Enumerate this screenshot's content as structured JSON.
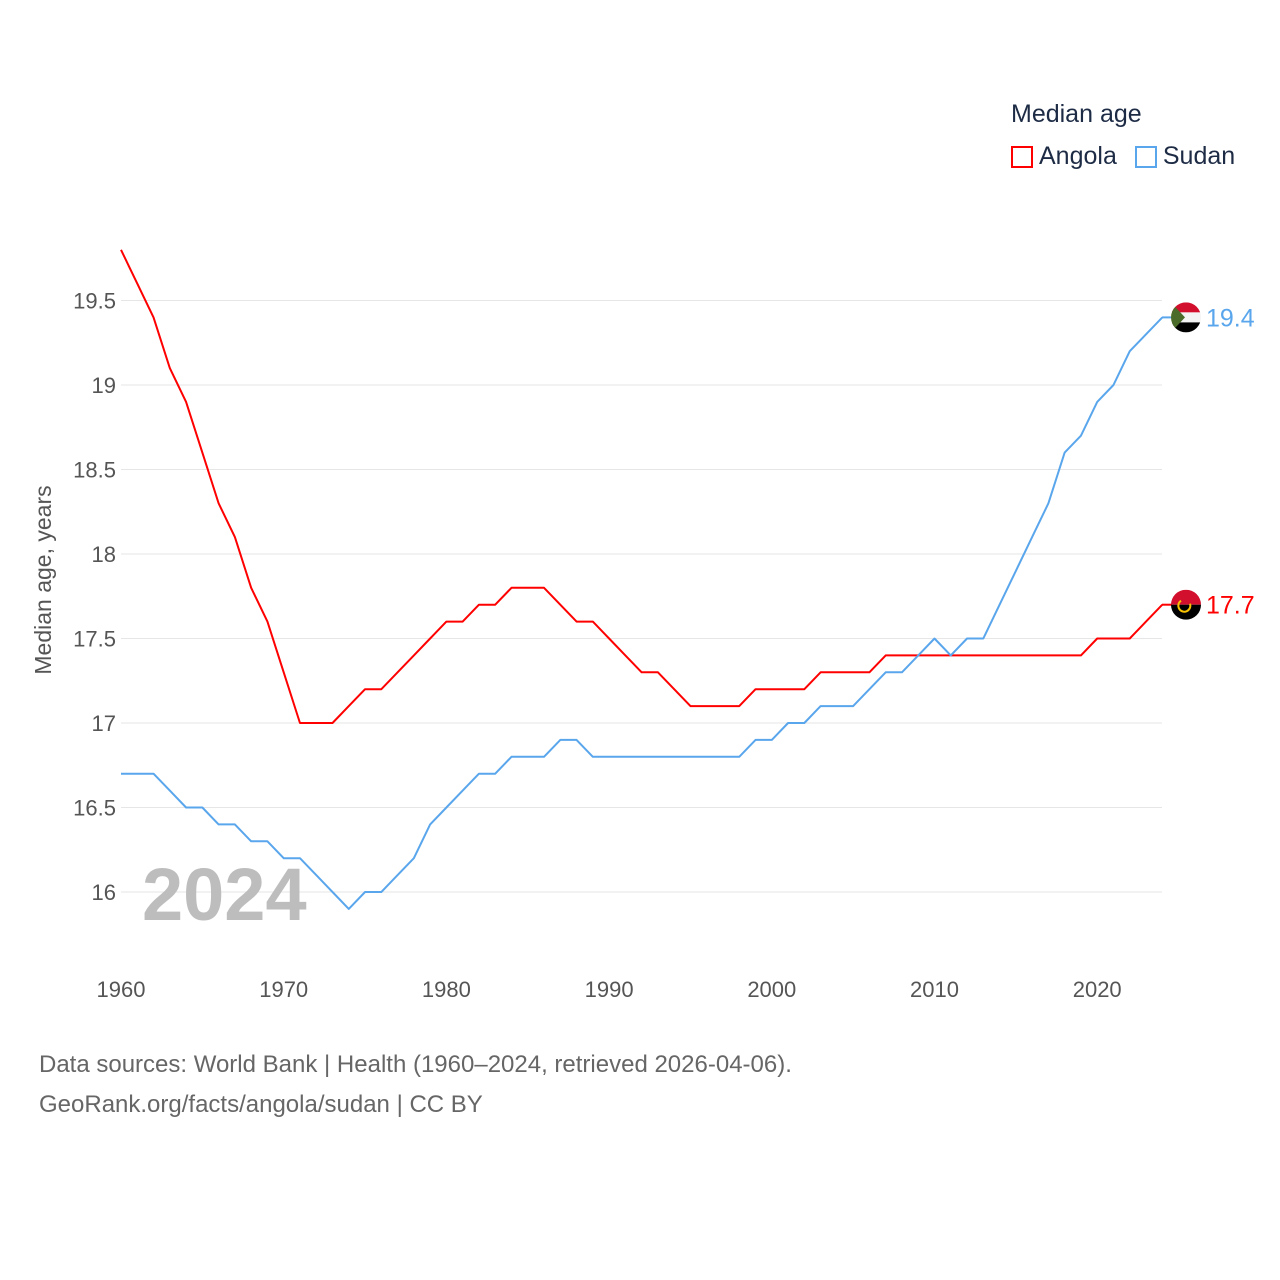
{
  "chart_data": {
    "type": "line",
    "title": "Median age",
    "ylabel": "Median age, years",
    "xlabel": "",
    "year_watermark": "2024",
    "xlim": [
      1960,
      2024
    ],
    "ylim": [
      15.6,
      19.9
    ],
    "x_ticks": [
      1960,
      1970,
      1980,
      1990,
      2000,
      2010,
      2020
    ],
    "y_ticks": [
      16,
      16.5,
      17,
      17.5,
      18,
      18.5,
      19,
      19.5
    ],
    "y_tick_labels": [
      "16",
      "16.5",
      "17",
      "17.5",
      "18",
      "18.5",
      "19",
      "19.5"
    ],
    "grid": true,
    "legend_position": "top-right",
    "x": [
      1960,
      1961,
      1962,
      1963,
      1964,
      1965,
      1966,
      1967,
      1968,
      1969,
      1970,
      1971,
      1972,
      1973,
      1974,
      1975,
      1976,
      1977,
      1978,
      1979,
      1980,
      1981,
      1982,
      1983,
      1984,
      1985,
      1986,
      1987,
      1988,
      1989,
      1990,
      1991,
      1992,
      1993,
      1994,
      1995,
      1996,
      1997,
      1998,
      1999,
      2000,
      2001,
      2002,
      2003,
      2004,
      2005,
      2006,
      2007,
      2008,
      2009,
      2010,
      2011,
      2012,
      2013,
      2014,
      2015,
      2016,
      2017,
      2018,
      2019,
      2020,
      2021,
      2022,
      2023,
      2024
    ],
    "series": [
      {
        "name": "Angola",
        "color": "#ff0000",
        "end_label": "17.7",
        "flag": "angola-flag",
        "values": [
          19.8,
          19.6,
          19.4,
          19.1,
          18.9,
          18.6,
          18.3,
          18.1,
          17.8,
          17.6,
          17.3,
          17.0,
          17.0,
          17.0,
          17.1,
          17.2,
          17.2,
          17.3,
          17.4,
          17.5,
          17.6,
          17.6,
          17.7,
          17.7,
          17.8,
          17.8,
          17.8,
          17.7,
          17.6,
          17.6,
          17.5,
          17.4,
          17.3,
          17.3,
          17.2,
          17.1,
          17.1,
          17.1,
          17.1,
          17.2,
          17.2,
          17.2,
          17.2,
          17.3,
          17.3,
          17.3,
          17.3,
          17.4,
          17.4,
          17.4,
          17.4,
          17.4,
          17.4,
          17.4,
          17.4,
          17.4,
          17.4,
          17.4,
          17.4,
          17.4,
          17.5,
          17.5,
          17.5,
          17.6,
          17.7
        ]
      },
      {
        "name": "Sudan",
        "color": "#5aa6ec",
        "end_label": "19.4",
        "flag": "sudan-flag",
        "values": [
          16.7,
          16.7,
          16.7,
          16.6,
          16.5,
          16.5,
          16.4,
          16.4,
          16.3,
          16.3,
          16.2,
          16.2,
          16.1,
          16.0,
          15.9,
          16.0,
          16.0,
          16.1,
          16.2,
          16.4,
          16.5,
          16.6,
          16.7,
          16.7,
          16.8,
          16.8,
          16.8,
          16.9,
          16.9,
          16.8,
          16.8,
          16.8,
          16.8,
          16.8,
          16.8,
          16.8,
          16.8,
          16.8,
          16.8,
          16.9,
          16.9,
          17.0,
          17.0,
          17.1,
          17.1,
          17.1,
          17.2,
          17.3,
          17.3,
          17.4,
          17.5,
          17.4,
          17.5,
          17.5,
          17.7,
          17.9,
          18.1,
          18.3,
          18.6,
          18.7,
          18.9,
          19.0,
          19.2,
          19.3,
          19.4
        ]
      }
    ]
  },
  "footer": {
    "line1": "Data sources: World Bank | Health (1960–2024, retrieved 2026-04-06).",
    "line2": "GeoRank.org/facts/angola/sudan | CC BY"
  }
}
